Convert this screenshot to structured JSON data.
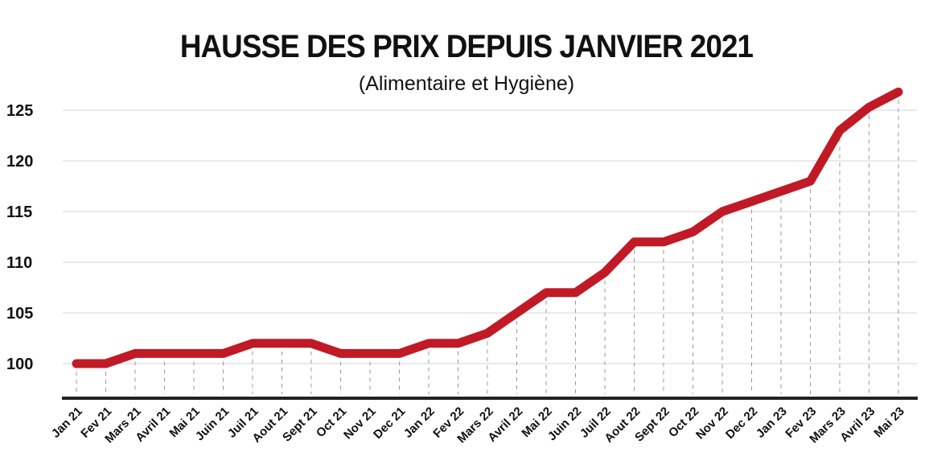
{
  "chart_data": {
    "type": "line",
    "title": "HAUSSE DES PRIX DEPUIS JANVIER 2021",
    "subtitle": "(Alimentaire et Hygiène)",
    "xlabel": "",
    "ylabel": "",
    "categories": [
      "Jan 21",
      "Fev 21",
      "Mars 21",
      "Avril 21",
      "Mai 21",
      "Juin 21",
      "Juil 21",
      "Aout 21",
      "Sept 21",
      "Oct 21",
      "Nov 21",
      "Dec 21",
      "Jan 22",
      "Fev 22",
      "Mars 22",
      "Avril 22",
      "Mai 22",
      "Juin 22",
      "Juil 22",
      "Aout 22",
      "Sept 22",
      "Oct 22",
      "Nov 22",
      "Dec 22",
      "Jan 23",
      "Fev 23",
      "Mars 23",
      "Avril 23",
      "Mai 23"
    ],
    "values": [
      100,
      100,
      101,
      101,
      101,
      101,
      102,
      102,
      102,
      101,
      101,
      101,
      102,
      102,
      103,
      105,
      107,
      107,
      109,
      112,
      112,
      113,
      115,
      116,
      117,
      118,
      123,
      125.3,
      126.8
    ],
    "yticks": [
      100,
      105,
      110,
      115,
      120,
      125
    ],
    "ylim": [
      96.5,
      128
    ],
    "grid": true,
    "line_color": "#c01a26"
  }
}
